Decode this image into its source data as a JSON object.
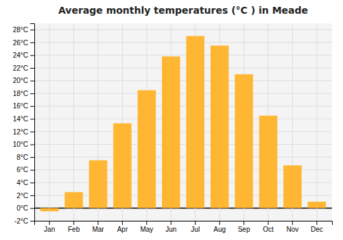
{
  "chart_data": {
    "type": "bar",
    "title": "Average monthly temperatures (°C ) in Meade",
    "categories": [
      "Jan",
      "Feb",
      "Mar",
      "Apr",
      "May",
      "Jun",
      "Jul",
      "Aug",
      "Sep",
      "Oct",
      "Nov",
      "Dec"
    ],
    "values": [
      -0.5,
      2.5,
      7.5,
      13.3,
      18.5,
      23.8,
      27.0,
      25.5,
      21.0,
      14.5,
      6.7,
      1.0
    ],
    "color": "#FFB733",
    "ylim": [
      -2,
      29
    ],
    "yticks": [
      {
        "value": -2,
        "label": "-2°C"
      },
      {
        "value": 0,
        "label": "0°C"
      },
      {
        "value": 2,
        "label": "2°C"
      },
      {
        "value": 4,
        "label": "4°C"
      },
      {
        "value": 6,
        "label": "6°C"
      },
      {
        "value": 8,
        "label": "8°C"
      },
      {
        "value": 10,
        "label": "10°C"
      },
      {
        "value": 12,
        "label": "12°C"
      },
      {
        "value": 14,
        "label": "14°C"
      },
      {
        "value": 16,
        "label": "16°C"
      },
      {
        "value": 18,
        "label": "18°C"
      },
      {
        "value": 20,
        "label": "20°C"
      },
      {
        "value": 22,
        "label": "22°C"
      },
      {
        "value": 24,
        "label": "24°C"
      },
      {
        "value": 26,
        "label": "26°C"
      },
      {
        "value": 28,
        "label": "28°C"
      }
    ],
    "grid": true
  }
}
